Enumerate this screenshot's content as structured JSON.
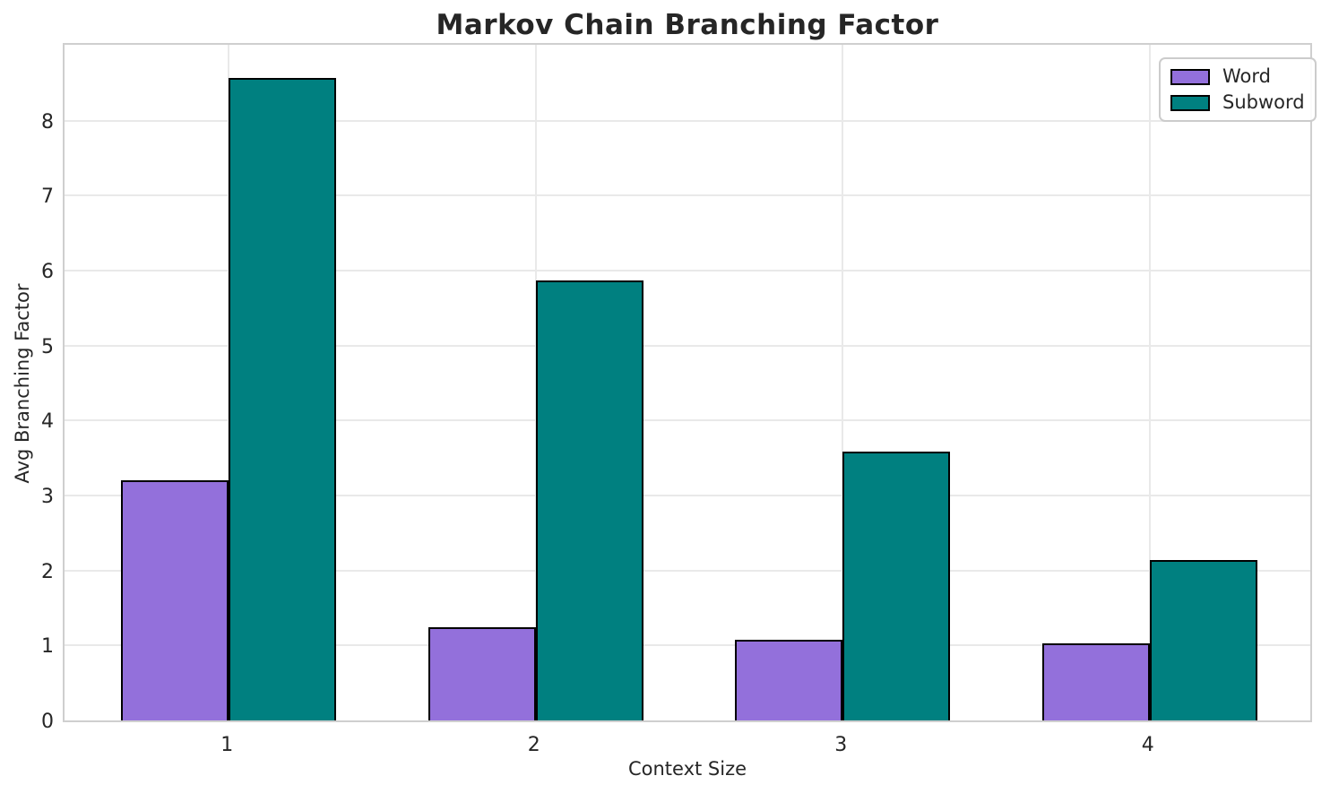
{
  "chart_data": {
    "type": "bar",
    "title": "Markov Chain Branching Factor",
    "xlabel": "Context Size",
    "ylabel": "Avg Branching Factor",
    "categories": [
      "1",
      "2",
      "3",
      "4"
    ],
    "series": [
      {
        "name": "Word",
        "color": "#9370db",
        "values": [
          3.2,
          1.24,
          1.07,
          1.03
        ]
      },
      {
        "name": "Subword",
        "color": "#008080",
        "values": [
          8.57,
          5.87,
          3.59,
          2.14
        ]
      }
    ],
    "ylim": [
      0,
      9.06
    ],
    "xlim": [
      -0.535,
      3.535
    ],
    "yticks": [
      0,
      1,
      2,
      3,
      4,
      5,
      6,
      7,
      8
    ],
    "bar_width": 0.35,
    "bar_edge_color": "#000000",
    "grid": true,
    "grid_color": "#e9e9e9",
    "legend_position": "upper right",
    "text_color": "#262626"
  }
}
